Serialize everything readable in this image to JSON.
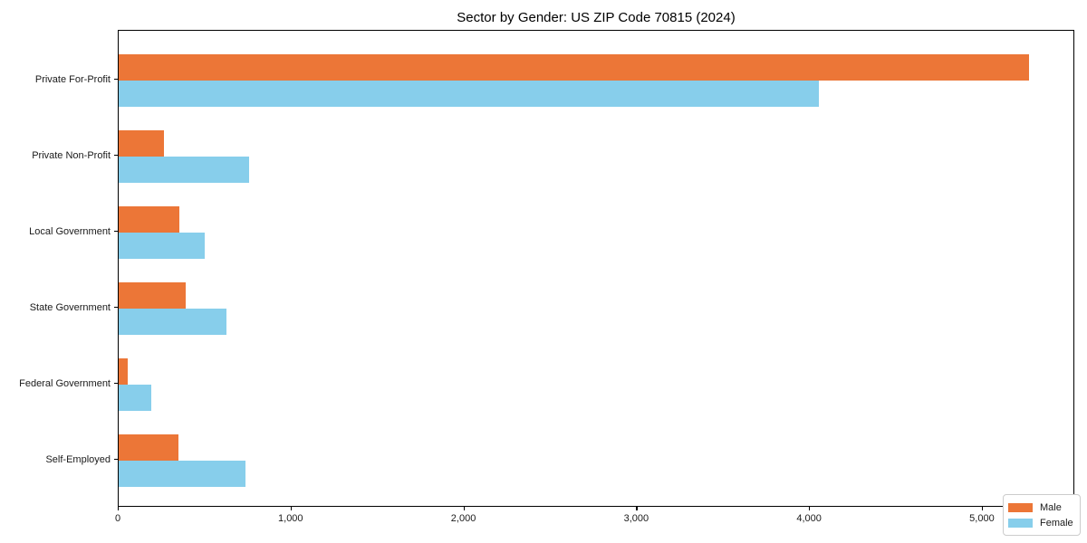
{
  "figure": {
    "background": "#ffffff"
  },
  "chart_data": {
    "type": "bar",
    "orientation": "horizontal",
    "title": "Sector by Gender: US ZIP Code 70815 (2024)",
    "categories": [
      "Private For-Profit",
      "Private Non-Profit",
      "Local Government",
      "State Government",
      "Federal Government",
      "Self-Employed"
    ],
    "series": [
      {
        "name": "Male",
        "color": "#EC7637",
        "values": [
          5270,
          260,
          350,
          390,
          55,
          345
        ]
      },
      {
        "name": "Female",
        "color": "#87CEEB",
        "values": [
          4050,
          755,
          500,
          625,
          190,
          735
        ]
      }
    ],
    "xlabel": "",
    "ylabel": "",
    "xlim": [
      0,
      5535
    ],
    "xticks": [
      0,
      1000,
      2000,
      3000,
      4000,
      5000
    ],
    "xtick_labels": [
      "0",
      "1,000",
      "2,000",
      "3,000",
      "4,000",
      "5,000"
    ],
    "grid": false,
    "legend": {
      "position": "lower-right",
      "entries": [
        "Male",
        "Female"
      ]
    },
    "axis_color": "#000000",
    "text_color": "#1a1a1a"
  }
}
